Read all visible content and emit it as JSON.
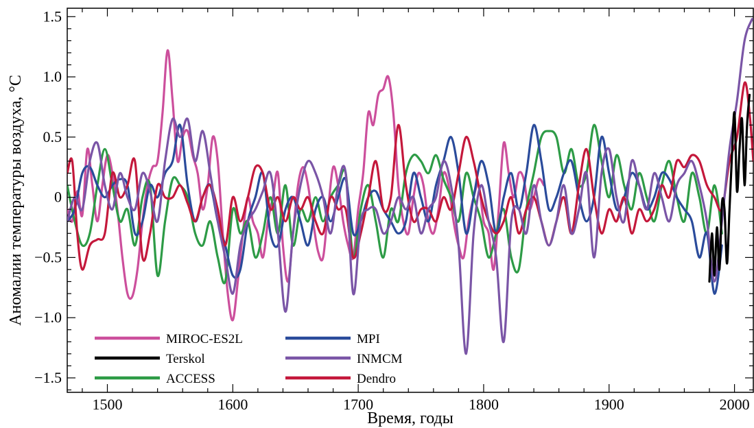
{
  "chart_data": {
    "type": "line",
    "title": "",
    "xlabel": "Время, годы",
    "ylabel": "Аномалии температуры воздуха, °C",
    "xlim": [
      1468,
      2015
    ],
    "ylim": [
      -1.62,
      1.57
    ],
    "xticks": [
      1500,
      1600,
      1700,
      1800,
      1900,
      2000
    ],
    "yticks": [
      -1.5,
      -1.0,
      -0.5,
      0,
      0.5,
      1.0,
      1.5
    ],
    "ytick_labels": [
      "−1.5",
      "−1.0",
      "−0.5",
      "0",
      "0.5",
      "1.0",
      "1.5"
    ],
    "grid": false,
    "legend_position": "bottom-left",
    "series": [
      {
        "name": "MIROC-ES2L",
        "color": "#cc4f9c",
        "x": [
          1468,
          1472,
          1476,
          1480,
          1484,
          1488,
          1492,
          1496,
          1500,
          1504,
          1508,
          1512,
          1516,
          1520,
          1524,
          1528,
          1532,
          1536,
          1540,
          1544,
          1548,
          1552,
          1556,
          1560,
          1564,
          1568,
          1572,
          1576,
          1580,
          1584,
          1588,
          1592,
          1596,
          1600,
          1604,
          1608,
          1612,
          1616,
          1620,
          1624,
          1628,
          1632,
          1636,
          1640,
          1644,
          1648,
          1652,
          1656,
          1660,
          1664,
          1668,
          1672,
          1676,
          1680,
          1684,
          1688,
          1692,
          1696,
          1700,
          1704,
          1708,
          1712,
          1716,
          1720,
          1724,
          1728,
          1732,
          1736,
          1740,
          1744,
          1748,
          1752,
          1756,
          1760,
          1764,
          1768,
          1772,
          1776,
          1780,
          1784,
          1788,
          1792,
          1796,
          1800,
          1804,
          1808,
          1812,
          1816,
          1820,
          1824,
          1828,
          1832,
          1836,
          1840,
          1844,
          1848
        ],
        "values": [
          -0.1,
          -0.2,
          0.05,
          -0.15,
          0.4,
          0.1,
          -0.2,
          0.1,
          0.35,
          0.2,
          -0.1,
          -0.5,
          -0.8,
          -0.82,
          -0.6,
          -0.2,
          0.1,
          0.25,
          0.3,
          0.7,
          1.22,
          0.8,
          0.3,
          0.5,
          0.55,
          0.35,
          0.2,
          -0.1,
          0.1,
          0.5,
          0.3,
          -0.3,
          -0.8,
          -1.02,
          -0.7,
          -0.3,
          0.0,
          -0.2,
          -0.3,
          -0.5,
          -0.2,
          0.0,
          0.2,
          -0.4,
          -0.7,
          -0.3,
          0.1,
          0.25,
          0.1,
          -0.2,
          -0.45,
          -0.5,
          -0.1,
          0.25,
          0.1,
          -0.2,
          -0.4,
          -0.5,
          -0.1,
          0.2,
          0.7,
          0.6,
          0.85,
          0.9,
          1.0,
          0.7,
          0.1,
          -0.2,
          -0.3,
          0.0,
          0.2,
          0.1,
          -0.2,
          -0.3,
          -0.1,
          0.2,
          0.1,
          -0.2,
          -0.4,
          -0.5,
          -0.2,
          0.0,
          0.1,
          -0.2,
          -0.3,
          -0.6,
          -0.1,
          0.45,
          0.2,
          0.0,
          0.2,
          0.15,
          -0.1,
          0.0,
          0.15,
          0.1
        ]
      },
      {
        "name": "MPI",
        "color": "#2a4b9b",
        "x": [
          1468,
          1474,
          1480,
          1486,
          1492,
          1498,
          1504,
          1510,
          1516,
          1522,
          1528,
          1534,
          1540,
          1546,
          1552,
          1558,
          1564,
          1570,
          1576,
          1582,
          1588,
          1594,
          1600,
          1606,
          1612,
          1618,
          1624,
          1630,
          1636,
          1642,
          1648,
          1654,
          1660,
          1666,
          1672,
          1678,
          1684,
          1690,
          1696,
          1702,
          1708,
          1714,
          1720,
          1726,
          1732,
          1738,
          1744,
          1750,
          1756,
          1762,
          1768,
          1774,
          1780,
          1786,
          1792,
          1798,
          1804,
          1810,
          1816,
          1822,
          1828,
          1834,
          1840,
          1846,
          1852,
          1858,
          1864,
          1870,
          1876,
          1882,
          1888,
          1894,
          1900,
          1906,
          1912,
          1918,
          1924,
          1930,
          1936,
          1942,
          1948,
          1954,
          1960,
          1966,
          1972,
          1978,
          1984,
          1990
        ],
        "values": [
          -0.2,
          -0.1,
          0.2,
          0.25,
          0.1,
          0.0,
          0.1,
          0.15,
          0.1,
          -0.3,
          -0.2,
          0.1,
          0.0,
          0.2,
          0.3,
          0.6,
          0.1,
          -0.2,
          0.0,
          0.1,
          -0.2,
          -0.4,
          -0.65,
          -0.6,
          -0.2,
          0.0,
          0.2,
          -0.3,
          -0.4,
          -0.1,
          0.0,
          -0.2,
          -0.4,
          -0.1,
          0.0,
          -0.2,
          0.0,
          0.15,
          -0.3,
          -0.2,
          0.0,
          0.05,
          -0.1,
          -0.2,
          -0.3,
          -0.2,
          0.2,
          0.0,
          -0.2,
          0.1,
          0.3,
          0.5,
          0.2,
          -0.3,
          0.0,
          0.3,
          0.1,
          -0.3,
          0.0,
          0.2,
          -0.1,
          0.2,
          0.6,
          0.3,
          -0.1,
          0.0,
          0.2,
          0.3,
          0.0,
          -0.2,
          0.0,
          0.5,
          0.2,
          -0.1,
          0.0,
          0.2,
          0.1,
          -0.1,
          0.0,
          0.2,
          0.15,
          0.0,
          -0.1,
          -0.2,
          -0.5,
          -0.3,
          -0.8,
          -0.4
        ]
      },
      {
        "name": "Terskol",
        "color": "#000000",
        "x": [
          1980,
          1982,
          1984,
          1986,
          1988,
          1990,
          1992,
          1994,
          1996,
          1998,
          2000,
          2002,
          2004,
          2006,
          2008,
          2010,
          2012
        ],
        "values": [
          -0.7,
          -0.3,
          -0.65,
          -0.25,
          -0.6,
          -0.05,
          -0.1,
          -0.55,
          -0.1,
          0.35,
          0.7,
          0.05,
          0.4,
          0.65,
          0.1,
          0.6,
          0.85
        ]
      },
      {
        "name": "INMCM",
        "color": "#7a55a6",
        "x": [
          1468,
          1474,
          1480,
          1486,
          1492,
          1498,
          1504,
          1510,
          1516,
          1522,
          1528,
          1534,
          1540,
          1546,
          1552,
          1558,
          1564,
          1570,
          1576,
          1582,
          1588,
          1594,
          1600,
          1606,
          1612,
          1618,
          1624,
          1630,
          1636,
          1642,
          1648,
          1654,
          1660,
          1666,
          1672,
          1678,
          1684,
          1690,
          1696,
          1702,
          1708,
          1714,
          1720,
          1726,
          1732,
          1738,
          1744,
          1750,
          1756,
          1762,
          1768,
          1774,
          1780,
          1786,
          1792,
          1798,
          1804,
          1810,
          1816,
          1822,
          1828,
          1834,
          1840,
          1846,
          1852,
          1858,
          1864,
          1870,
          1876,
          1882,
          1888,
          1894,
          1900,
          1906,
          1912,
          1918,
          1924,
          1930,
          1936,
          1942,
          1948,
          1954,
          1960,
          1966,
          1972,
          1978,
          1984,
          1990,
          1996,
          2002,
          2008,
          2014
        ],
        "values": [
          -0.2,
          0.0,
          -0.1,
          0.3,
          0.45,
          0.1,
          -0.1,
          0.2,
          0.0,
          -0.1,
          0.2,
          0.05,
          -0.2,
          0.3,
          0.65,
          0.5,
          0.65,
          0.3,
          0.55,
          0.2,
          -0.2,
          -0.5,
          -0.8,
          -0.4,
          -0.2,
          -0.1,
          0.05,
          0.2,
          -0.3,
          -0.95,
          -0.3,
          0.1,
          0.3,
          0.2,
          0.0,
          -0.3,
          0.1,
          0.2,
          -0.8,
          -0.2,
          -0.1,
          -0.1,
          -0.3,
          -0.2,
          0.0,
          -0.1,
          0.0,
          -0.3,
          -0.1,
          0.0,
          0.3,
          0.1,
          -0.4,
          -1.3,
          -0.3,
          0.1,
          -0.2,
          -0.5,
          -1.2,
          -0.2,
          -0.1,
          -0.3,
          0.1,
          -0.2,
          -0.4,
          -0.2,
          0.1,
          -0.3,
          -0.1,
          0.2,
          -0.5,
          0.2,
          0.4,
          0.0,
          -0.2,
          0.3,
          0.1,
          -0.1,
          0.2,
          0.0,
          -0.2,
          0.1,
          0.2,
          0.3,
          0.1,
          -0.2,
          -0.7,
          -0.2,
          0.4,
          0.8,
          1.3,
          1.48
        ]
      },
      {
        "name": "ACCESS",
        "color": "#2d9b46",
        "x": [
          1468,
          1474,
          1480,
          1486,
          1492,
          1498,
          1504,
          1510,
          1516,
          1522,
          1528,
          1534,
          1540,
          1546,
          1552,
          1558,
          1564,
          1570,
          1576,
          1582,
          1588,
          1594,
          1600,
          1606,
          1612,
          1618,
          1624,
          1630,
          1636,
          1642,
          1648,
          1654,
          1660,
          1666,
          1672,
          1678,
          1684,
          1690,
          1696,
          1702,
          1708,
          1714,
          1720,
          1726,
          1732,
          1738,
          1744,
          1750,
          1756,
          1762,
          1768,
          1774,
          1780,
          1786,
          1792,
          1798,
          1804,
          1810,
          1816,
          1822,
          1828,
          1834,
          1840,
          1846,
          1852,
          1858,
          1864,
          1870,
          1876,
          1882,
          1888,
          1894,
          1900,
          1906,
          1912,
          1918,
          1924,
          1930,
          1936,
          1942,
          1948,
          1954,
          1960,
          1966,
          1972,
          1978,
          1984,
          1990
        ],
        "values": [
          0.1,
          -0.2,
          -0.4,
          -0.3,
          0.1,
          0.4,
          0.1,
          -0.2,
          -0.1,
          -0.4,
          0.0,
          0.1,
          -0.65,
          -0.2,
          0.15,
          0.1,
          0.0,
          -0.3,
          -0.4,
          -0.2,
          -0.5,
          -0.7,
          -0.1,
          -0.3,
          -0.2,
          -0.5,
          -0.3,
          0.0,
          -0.3,
          0.1,
          -0.4,
          -0.1,
          -0.2,
          0.0,
          -0.2,
          0.0,
          0.1,
          0.2,
          -0.5,
          -0.1,
          0.1,
          -0.2,
          -0.5,
          -0.1,
          -0.2,
          0.2,
          0.35,
          0.3,
          0.2,
          0.35,
          0.15,
          0.0,
          -0.2,
          0.2,
          0.0,
          -0.2,
          -0.5,
          -0.3,
          -0.1,
          -0.5,
          -0.6,
          -0.1,
          0.2,
          0.5,
          0.55,
          0.5,
          0.2,
          0.4,
          0.1,
          0.2,
          0.6,
          0.3,
          0.0,
          0.35,
          0.1,
          -0.1,
          0.2,
          0.0,
          -0.2,
          0.1,
          0.3,
          0.0,
          -0.2,
          0.2,
          0.0,
          -0.3,
          0.1,
          -0.3
        ]
      },
      {
        "name": "Dendro",
        "color": "#c4183b",
        "x": [
          1468,
          1472,
          1476,
          1480,
          1486,
          1492,
          1498,
          1504,
          1510,
          1516,
          1522,
          1528,
          1534,
          1540,
          1546,
          1552,
          1558,
          1564,
          1570,
          1576,
          1582,
          1588,
          1594,
          1600,
          1606,
          1612,
          1618,
          1624,
          1630,
          1636,
          1642,
          1648,
          1654,
          1660,
          1666,
          1672,
          1678,
          1684,
          1690,
          1696,
          1702,
          1708,
          1714,
          1720,
          1726,
          1732,
          1738,
          1744,
          1750,
          1756,
          1762,
          1768,
          1774,
          1780,
          1786,
          1792,
          1798,
          1804,
          1810,
          1816,
          1822,
          1828,
          1834,
          1840,
          1846,
          1852,
          1858,
          1864,
          1870,
          1876,
          1882,
          1888,
          1894,
          1900,
          1906,
          1912,
          1918,
          1924,
          1930,
          1936,
          1942,
          1948,
          1954,
          1960,
          1966,
          1972,
          1978,
          1984,
          1990,
          1996,
          2002,
          2008,
          2012,
          2015
        ],
        "values": [
          0.2,
          0.3,
          -0.3,
          -0.6,
          -0.4,
          -0.35,
          -0.3,
          0.2,
          0.0,
          0.1,
          0.3,
          -0.5,
          -0.3,
          0.1,
          0.0,
          0.0,
          0.1,
          -0.05,
          -0.2,
          0.0,
          0.1,
          -0.1,
          -0.4,
          0.0,
          -0.2,
          0.0,
          0.25,
          0.2,
          -0.1,
          0.0,
          -0.2,
          0.0,
          -0.1,
          0.0,
          -0.2,
          -0.3,
          0.0,
          -0.1,
          -0.1,
          -0.5,
          -0.3,
          0.0,
          0.3,
          -0.1,
          0.0,
          0.6,
          0.1,
          -0.2,
          -0.1,
          -0.1,
          -0.2,
          0.0,
          -0.1,
          0.2,
          0.5,
          0.3,
          0.0,
          -0.2,
          -0.3,
          -0.2,
          0.0,
          -0.3,
          -0.1,
          0.0,
          -0.2,
          -0.4,
          -0.2,
          0.0,
          -0.3,
          0.1,
          0.4,
          0.0,
          -0.3,
          -0.1,
          -0.2,
          0.0,
          -0.3,
          -0.1,
          -0.2,
          -0.1,
          0.1,
          0.0,
          0.3,
          0.25,
          0.35,
          0.3,
          0.1,
          0.0,
          -0.1,
          0.3,
          0.5,
          0.95,
          0.7,
          0.3
        ]
      }
    ]
  }
}
